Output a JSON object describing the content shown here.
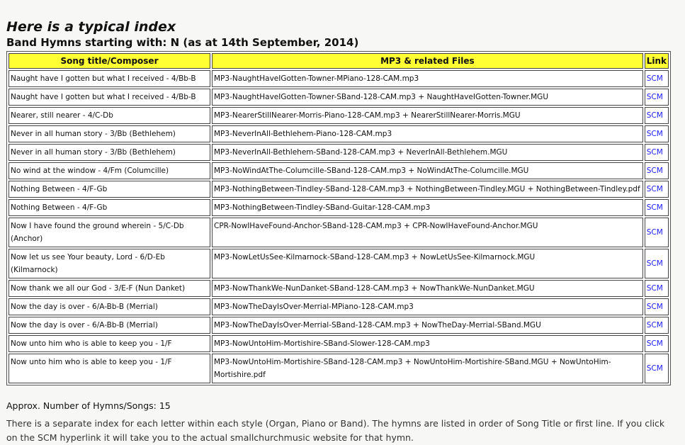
{
  "heading": "Here is a typical index",
  "subheading": "Band Hymns starting with: N (as at 14th September, 2014)",
  "table": {
    "headers": [
      "Song title/Composer",
      "MP3 & related Files",
      "Link"
    ],
    "rows": [
      {
        "title": "Naught have I gotten but what I received - 4/Bb-B",
        "files": "MP3-NaughtHaveIGotten-Towner-MPiano-128-CAM.mp3",
        "link": "SCM"
      },
      {
        "title": "Naught have I gotten but what I received - 4/Bb-B",
        "files": "MP3-NaughtHaveIGotten-Towner-SBand-128-CAM.mp3 + NaughtHaveIGotten-Towner.MGU",
        "link": "SCM"
      },
      {
        "title": "Nearer, still nearer - 4/C-Db",
        "files": "MP3-NearerStillNearer-Morris-Piano-128-CAM.mp3 + NearerStillNearer-Morris.MGU",
        "link": "SCM"
      },
      {
        "title": "Never in all human story - 3/Bb (Bethlehem)",
        "files": "MP3-NeverInAll-Bethlehem-Piano-128-CAM.mp3",
        "link": "SCM"
      },
      {
        "title": "Never in all human story - 3/Bb (Bethlehem)",
        "files": "MP3-NeverInAll-Bethlehem-SBand-128-CAM.mp3 + NeverInAll-Bethlehem.MGU",
        "link": "SCM"
      },
      {
        "title": "No wind at the window - 4/Fm (Columcille)",
        "files": "MP3-NoWindAtThe-Columcille-SBand-128-CAM.mp3 + NoWindAtThe-Columcille.MGU",
        "link": "SCM"
      },
      {
        "title": "Nothing Between - 4/F-Gb",
        "files": "MP3-NothingBetween-Tindley-SBand-128-CAM.mp3 + NothingBetween-Tindley.MGU + NothingBetween-Tindley.pdf",
        "link": "SCM"
      },
      {
        "title": "Nothing Between - 4/F-Gb",
        "files": "MP3-NothingBetween-Tindley-SBand-Guitar-128-CAM.mp3",
        "link": "SCM"
      },
      {
        "title": "Now I have found the ground wherein - 5/C-Db (Anchor)",
        "files": "CPR-NowIHaveFound-Anchor-SBand-128-CAM.mp3 + CPR-NowIHaveFound-Anchor.MGU",
        "link": "SCM"
      },
      {
        "title": "Now let us see Your beauty, Lord - 6/D-Eb (Kilmarnock)",
        "files": "MP3-NowLetUsSee-Kilmarnock-SBand-128-CAM.mp3 + NowLetUsSee-Kilmarnock.MGU",
        "link": "SCM"
      },
      {
        "title": "Now thank we all our God - 3/E-F (Nun Danket)",
        "files": "MP3-NowThankWe-NunDanket-SBand-128-CAM.mp3 + NowThankWe-NunDanket.MGU",
        "link": "SCM"
      },
      {
        "title": "Now the day is over - 6/A-Bb-B (Merrial)",
        "files": "MP3-NowTheDayIsOver-Merrial-MPiano-128-CAM.mp3",
        "link": "SCM"
      },
      {
        "title": "Now the day is over - 6/A-Bb-B (Merrial)",
        "files": "MP3-NowTheDayIsOver-Merrial-SBand-128-CAM.mp3 + NowTheDay-Merrial-SBand.MGU",
        "link": "SCM"
      },
      {
        "title": "Now unto him who is able to keep you - 1/F",
        "files": "MP3-NowUntoHim-Mortishire-SBand-Slower-128-CAM.mp3",
        "link": "SCM"
      },
      {
        "title": "Now unto him who is able to keep you - 1/F",
        "files": "MP3-NowUntoHim-Mortishire-SBand-128-CAM.mp3 + NowUntoHim-Mortishire-SBand.MGU + NowUntoHim-Mortishire.pdf",
        "link": "SCM"
      }
    ]
  },
  "count_text": "Approx. Number of Hymns/Songs: 15",
  "note": "There is a separate index for each letter within each style (Organ, Piano or Band).  The hymns are listed in order of Song Title or first line.   If you click on the SCM hyperlink it will take you to the actual smallchurchmusic website for that hymn."
}
